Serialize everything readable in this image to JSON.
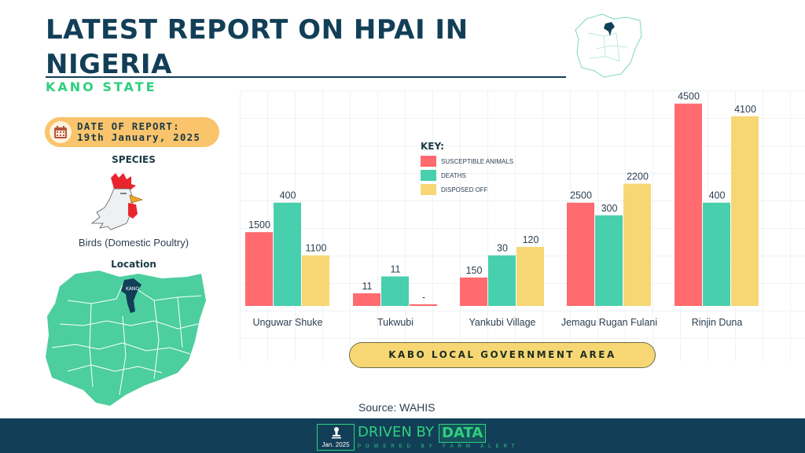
{
  "header": {
    "title": "LATEST REPORT ON HPAI IN NIGERIA",
    "subtitle": "KANO STATE"
  },
  "report": {
    "date_label": "DATE OF REPORT:",
    "date_value": "19th January, 2025"
  },
  "species": {
    "heading": "SPECIES",
    "name": "Birds (Domestic Poultry)"
  },
  "location": {
    "heading": "Location",
    "map_label": "KANO"
  },
  "colors": {
    "navy": "#123f57",
    "green": "#2fcf7e",
    "susceptible": "#ff6b6f",
    "deaths": "#48cfad",
    "disposed": "#f7d774",
    "map_fill": "#4cce9f"
  },
  "chart_data": {
    "type": "bar",
    "title": "",
    "xlabel": "KABO LOCAL GOVERNMENT AREA",
    "ylabel": "",
    "grid": true,
    "legend_title": "KEY:",
    "legend_position": "top-center",
    "categories": [
      "Unguwar Shuke",
      "Tukwubi",
      "Yankubi Village",
      "Jemagu Rugan Fulani",
      "Rinjin Duna"
    ],
    "series": [
      {
        "name": "SUSCEPTIBLE ANIMALS",
        "color": "#ff6b6f",
        "values": [
          1500,
          11,
          150,
          2500,
          4500
        ],
        "labels": [
          "1500",
          "11",
          "150",
          "2500",
          "4500"
        ],
        "shown_level": [
          0.35,
          0.06,
          0.135,
          0.49,
          0.96
        ]
      },
      {
        "name": "DEATHS",
        "color": "#48cfad",
        "values": [
          400,
          11,
          30,
          300,
          400
        ],
        "labels": [
          "400",
          "11",
          "30",
          "300",
          "400"
        ],
        "shown_level": [
          0.49,
          0.14,
          0.24,
          0.43,
          0.49
        ]
      },
      {
        "name": "DISPOSED OFF",
        "color": "#f7d774",
        "values": [
          1100,
          null,
          120,
          2200,
          4100
        ],
        "labels": [
          "1100",
          "-",
          "120",
          "2200",
          "4100"
        ],
        "shown_level": [
          0.24,
          0.008,
          0.28,
          0.58,
          0.9
        ]
      }
    ]
  },
  "footer": {
    "source": "Source: WAHIS",
    "stamp": "Jan. 2025",
    "brand": "DRIVEN BY",
    "brand_highlight": "DATA",
    "powered": "POWERED BY FARM ALERT"
  }
}
